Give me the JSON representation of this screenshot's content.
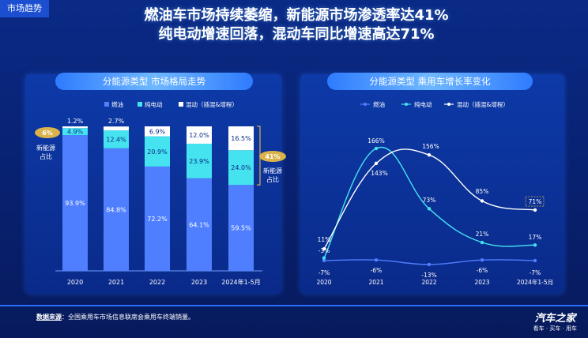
{
  "tag": "市场趋势",
  "headline": {
    "line1": "燃油车市场持续萎缩，新能源市场渗透率达41%",
    "line2": "纯电动增速回落，混动车同比增速高达71%"
  },
  "colors": {
    "fuel": "#4f7fff",
    "ev": "#45e3f0",
    "hybrid": "#ffffff",
    "gold": "#d9b24a"
  },
  "left": {
    "title": "分能源类型 市场格局走势",
    "legend": [
      "燃油",
      "纯电动",
      "混动（插混&增程）"
    ],
    "start_badge": "6%",
    "start_label": [
      "新能源",
      "占比"
    ],
    "end_badge": "41%",
    "end_label": [
      "新能源",
      "占比"
    ]
  },
  "right": {
    "title": "分能源类型 乘用车增长率变化",
    "legend": [
      "燃油",
      "纯电动",
      "混动（插混&增程）"
    ]
  },
  "chart_data": [
    {
      "type": "bar",
      "stacked": true,
      "categories": [
        "2020",
        "2021",
        "2022",
        "2023",
        "2024年1-5月"
      ],
      "series": [
        {
          "name": "燃油",
          "values": [
            93.9,
            84.8,
            72.2,
            64.1,
            59.5
          ],
          "labels": [
            "93.9%",
            "84.8%",
            "72.2%",
            "64.1%",
            "59.5%"
          ]
        },
        {
          "name": "纯电动",
          "values": [
            4.9,
            12.4,
            20.9,
            23.9,
            24.0
          ],
          "labels": [
            "4.9%",
            "12.4%",
            "20.9%",
            "23.9%",
            "24.0%"
          ]
        },
        {
          "name": "混动（插混&增程）",
          "values": [
            1.2,
            2.7,
            6.9,
            12.0,
            16.5
          ],
          "labels": [
            "1.2%",
            "2.7%",
            "6.9%",
            "12.0%",
            "16.5%"
          ]
        }
      ],
      "ylim": [
        0,
        100
      ]
    },
    {
      "type": "line",
      "categories": [
        "2020",
        "2021",
        "2022",
        "2023",
        "2024年1-5月"
      ],
      "series": [
        {
          "name": "燃油",
          "values": [
            -7,
            -6,
            -13,
            -6,
            -7
          ],
          "labels": [
            "-7%",
            "-6%",
            "-13%",
            "-6%",
            "-7%"
          ]
        },
        {
          "name": "纯电动",
          "values": [
            -3,
            166,
            73,
            21,
            17
          ],
          "labels": [
            "-3%",
            "166%",
            "73%",
            "21%",
            "17%"
          ]
        },
        {
          "name": "混动（插混&增程）",
          "values": [
            11,
            143,
            156,
            85,
            71
          ],
          "labels": [
            "11%",
            "143%",
            "156%",
            "85%",
            "71%"
          ]
        }
      ],
      "ylim": [
        -20,
        175
      ]
    }
  ],
  "footer": {
    "source_label": "数据来源",
    "source_text": "：全国乘用车市场信息联席会乘用车终端销量。"
  },
  "logo": {
    "name": "汽车之家",
    "sub": "看车 · 买车 · 用车"
  }
}
